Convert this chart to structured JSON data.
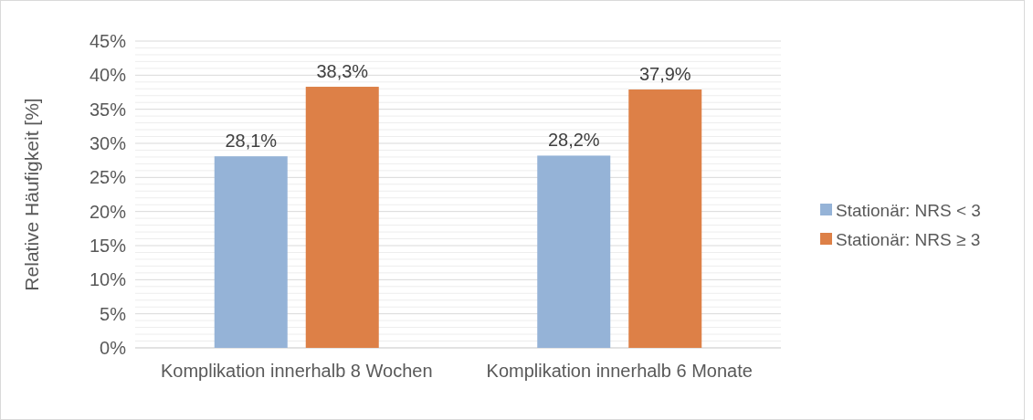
{
  "chart_data": {
    "type": "bar",
    "ylabel": "Relative Häufigkeit [%]",
    "categories": [
      "Komplikation innerhalb 8 Wochen",
      "Komplikation innerhalb 6 Monate"
    ],
    "series": [
      {
        "name": "Stationär: NRS < 3",
        "color": "#95b3d7",
        "values": [
          28.1,
          28.2
        ],
        "value_labels": [
          "28,1%",
          "28,2%"
        ]
      },
      {
        "name": "Stationär: NRS ≥ 3",
        "color": "#dd8047",
        "values": [
          38.3,
          37.9
        ],
        "value_labels": [
          "38,3%",
          "37,9%"
        ]
      }
    ],
    "ylim": [
      0,
      45
    ],
    "yticks": [
      {
        "value": 0,
        "label": "0%"
      },
      {
        "value": 1,
        "label": null
      },
      {
        "value": 2,
        "label": null
      },
      {
        "value": 3,
        "label": null
      },
      {
        "value": 4,
        "label": null
      },
      {
        "value": 5,
        "label": "5%"
      },
      {
        "value": 6,
        "label": null
      },
      {
        "value": 7,
        "label": null
      },
      {
        "value": 8,
        "label": null
      },
      {
        "value": 9,
        "label": null
      },
      {
        "value": 10,
        "label": "10%"
      },
      {
        "value": 11,
        "label": null
      },
      {
        "value": 12,
        "label": null
      },
      {
        "value": 13,
        "label": null
      },
      {
        "value": 14,
        "label": null
      },
      {
        "value": 15,
        "label": "15%"
      },
      {
        "value": 16,
        "label": null
      },
      {
        "value": 17,
        "label": null
      },
      {
        "value": 18,
        "label": null
      },
      {
        "value": 19,
        "label": null
      },
      {
        "value": 20,
        "label": "20%"
      },
      {
        "value": 21,
        "label": null
      },
      {
        "value": 22,
        "label": null
      },
      {
        "value": 23,
        "label": null
      },
      {
        "value": 24,
        "label": null
      },
      {
        "value": 25,
        "label": "25%"
      },
      {
        "value": 26,
        "label": null
      },
      {
        "value": 27,
        "label": null
      },
      {
        "value": 28,
        "label": null
      },
      {
        "value": 29,
        "label": null
      },
      {
        "value": 30,
        "label": "30%"
      },
      {
        "value": 31,
        "label": null
      },
      {
        "value": 32,
        "label": null
      },
      {
        "value": 33,
        "label": null
      },
      {
        "value": 34,
        "label": null
      },
      {
        "value": 35,
        "label": "35%"
      },
      {
        "value": 36,
        "label": null
      },
      {
        "value": 37,
        "label": null
      },
      {
        "value": 38,
        "label": null
      },
      {
        "value": 39,
        "label": null
      },
      {
        "value": 40,
        "label": "40%"
      },
      {
        "value": 41,
        "label": null
      },
      {
        "value": 42,
        "label": null
      },
      {
        "value": 43,
        "label": null
      },
      {
        "value": 44,
        "label": null
      },
      {
        "value": 45,
        "label": "45%"
      }
    ],
    "grid": true,
    "legend": "right"
  }
}
